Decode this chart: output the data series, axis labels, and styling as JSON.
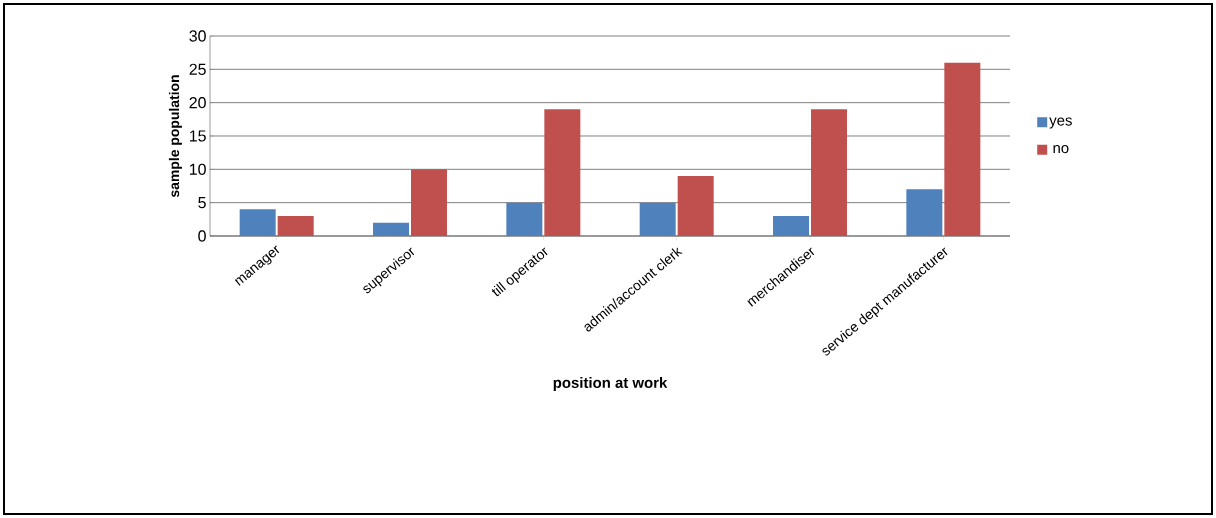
{
  "chart_data": {
    "type": "bar",
    "xlabel": "position at work",
    "ylabel": "sample population",
    "categories": [
      "manager",
      "supervisor",
      "till operator",
      "admin/account clerk",
      "merchandiser",
      "service dept manufacturer"
    ],
    "series": [
      {
        "name": "yes",
        "color": "#4f81bd",
        "values": [
          4,
          2,
          5,
          5,
          3,
          7
        ]
      },
      {
        "name": "no",
        "color": "#c0504d",
        "values": [
          3,
          10,
          19,
          9,
          19,
          26
        ]
      }
    ],
    "ylim": [
      0,
      30
    ],
    "yticks": [
      0,
      5,
      10,
      15,
      20,
      25,
      30
    ],
    "grid": "y",
    "legend": "right"
  }
}
